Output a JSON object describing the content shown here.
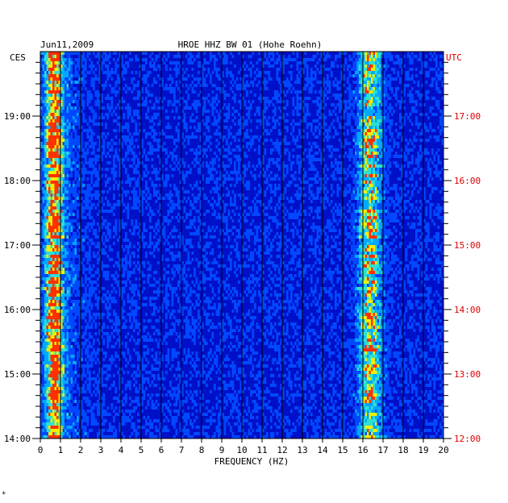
{
  "chart_data": {
    "type": "heatmap",
    "date": "Jun11,2009",
    "title": "HROE HHZ BW 01 (Hohe Roehn)",
    "xlabel": "FREQUENCY (HZ)",
    "left_axis_label": "CES",
    "right_axis_label": "UTC",
    "xlim": [
      0,
      20
    ],
    "x_ticks": [
      "0",
      "1",
      "2",
      "3",
      "4",
      "5",
      "6",
      "7",
      "8",
      "9",
      "10",
      "11",
      "12",
      "13",
      "14",
      "15",
      "16",
      "17",
      "18",
      "19",
      "20"
    ],
    "ces_ticks": [
      {
        "label": "19:00",
        "hour": 19
      },
      {
        "label": "18:00",
        "hour": 18
      },
      {
        "label": "17:00",
        "hour": 17
      },
      {
        "label": "16:00",
        "hour": 16
      },
      {
        "label": "15:00",
        "hour": 15
      },
      {
        "label": "14:00",
        "hour": 14
      }
    ],
    "utc_ticks": [
      {
        "label": "17:00",
        "hour": 17
      },
      {
        "label": "16:00",
        "hour": 16
      },
      {
        "label": "15:00",
        "hour": 15
      },
      {
        "label": "14:00",
        "hour": 14
      },
      {
        "label": "13:00",
        "hour": 13
      },
      {
        "label": "12:00",
        "hour": 12
      }
    ],
    "time_range_ces": [
      14,
      20
    ],
    "grid": true,
    "colormap": [
      "#00007a",
      "#0010c8",
      "#0048ff",
      "#00a8ff",
      "#30e0d0",
      "#f0f000",
      "#ff3000"
    ],
    "energy_bands": [
      {
        "from_hz": 0.1,
        "to_hz": 1.2,
        "level": "high"
      },
      {
        "from_hz": 15.6,
        "to_hz": 17.0,
        "level": "medium"
      }
    ]
  },
  "footer_mark": "*"
}
